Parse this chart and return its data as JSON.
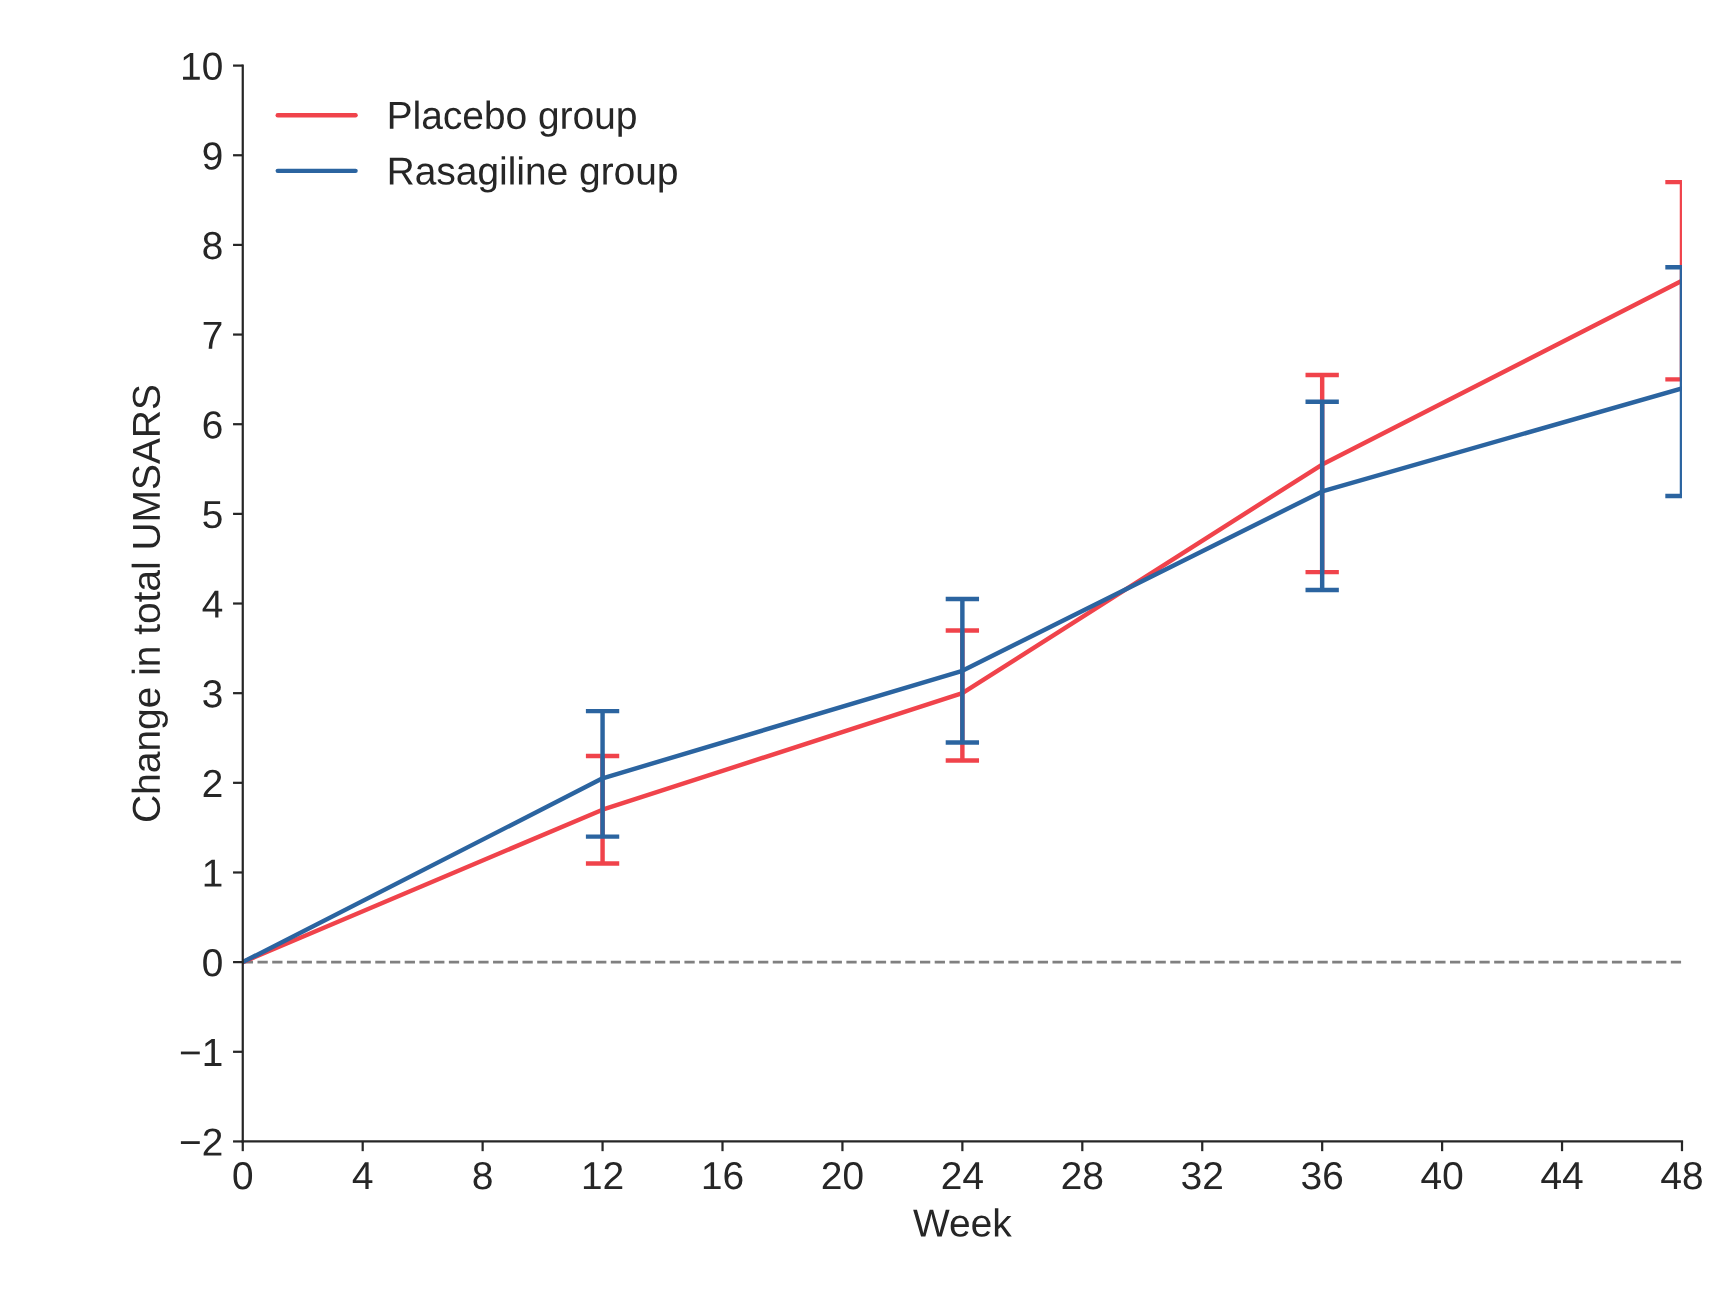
{
  "chart_data": {
    "type": "line",
    "xlabel": "Week",
    "ylabel": "Change in total UMSARS",
    "x": [
      0,
      12,
      24,
      36,
      48
    ],
    "series": [
      {
        "name": "Placebo group",
        "color": "#f0434b",
        "values": [
          0,
          1.7,
          3.0,
          5.55,
          7.6
        ],
        "errors": [
          null,
          [
            1.1,
            2.3
          ],
          [
            2.25,
            3.7
          ],
          [
            4.35,
            6.55
          ],
          [
            6.5,
            8.7
          ]
        ]
      },
      {
        "name": "Rasagiline group",
        "color": "#2b64a0",
        "values": [
          0,
          2.05,
          3.25,
          5.25,
          6.4
        ],
        "errors": [
          null,
          [
            1.4,
            2.8
          ],
          [
            2.45,
            4.05
          ],
          [
            4.15,
            6.25
          ],
          [
            5.2,
            7.75
          ]
        ]
      }
    ],
    "xlim": [
      0,
      48
    ],
    "xticks": [
      0,
      4,
      8,
      12,
      16,
      20,
      24,
      28,
      32,
      36,
      40,
      44,
      48
    ],
    "ylim": [
      -2,
      10
    ],
    "yticks": [
      {
        "value": -2,
        "label": "−2"
      },
      {
        "value": -1,
        "label": "−1"
      },
      0,
      1,
      2,
      3,
      4,
      5,
      6,
      7,
      8,
      9,
      10
    ],
    "ref_lines": [
      {
        "axis": "y",
        "value": 0,
        "color": "#808080",
        "line_style": "dashed"
      }
    ],
    "legend": "top left",
    "grid": false,
    "marker": "none",
    "line_style": "solid"
  }
}
